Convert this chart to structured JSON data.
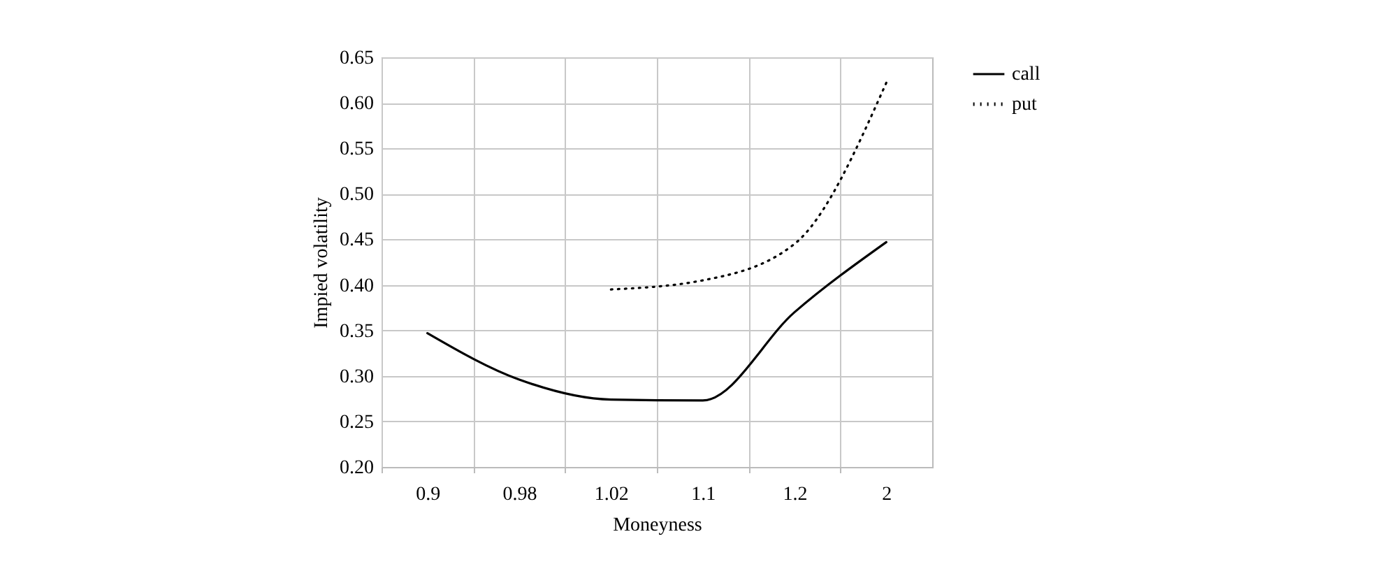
{
  "chart_data": {
    "type": "line",
    "xlabel": "Moneyness",
    "ylabel": "Impied volatility",
    "categories": [
      "0.9",
      "0.98",
      "1.02",
      "1.1",
      "1.2",
      "2"
    ],
    "series": [
      {
        "name": "call",
        "color": "#000000",
        "line_style": "solid",
        "values": [
          0.347,
          0.296,
          0.274,
          0.273,
          0.37,
          0.447
        ]
      },
      {
        "name": "put",
        "color": "#000000",
        "line_style": "dotted",
        "values": [
          null,
          null,
          0.395,
          0.405,
          0.445,
          0.622
        ]
      }
    ],
    "ylim": [
      0.2,
      0.65
    ],
    "yticks": [
      {
        "value": 0.2,
        "label": "0.20"
      },
      {
        "value": 0.25,
        "label": "0.25"
      },
      {
        "value": 0.3,
        "label": "0.30"
      },
      {
        "value": 0.35,
        "label": "0.35"
      },
      {
        "value": 0.4,
        "label": "0.40"
      },
      {
        "value": 0.45,
        "label": "0.45"
      },
      {
        "value": 0.5,
        "label": "0.50"
      },
      {
        "value": 0.55,
        "label": "0.55"
      },
      {
        "value": 0.6,
        "label": "0.60"
      },
      {
        "value": 0.65,
        "label": "0.65"
      }
    ],
    "grid": true,
    "legend": "right"
  }
}
